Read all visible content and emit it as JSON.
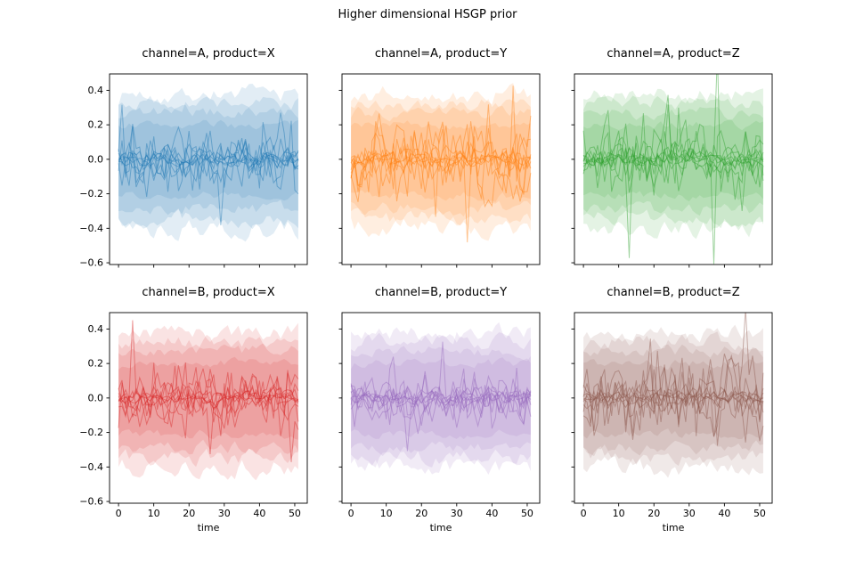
{
  "chart_data": {
    "type": "line",
    "suptitle": "Higher dimensional HSGP prior",
    "layout": {
      "rows": 2,
      "cols": 3,
      "grid": false,
      "legend": "none"
    },
    "x": {
      "label": "time",
      "ticks": [
        0,
        10,
        20,
        30,
        40,
        50
      ],
      "tick_labels": [
        "0",
        "10",
        "20",
        "30",
        "40",
        "50"
      ],
      "range": [
        -2.55,
        53.55
      ],
      "data_start": 0,
      "data_end": 51,
      "n_points": 52
    },
    "y": {
      "label": "",
      "ticks": [
        0.4,
        0.2,
        0.0,
        -0.2,
        -0.4,
        -0.6
      ],
      "tick_labels": [
        "0.4",
        "0.2",
        "0.0",
        "−0.2",
        "−0.4",
        "−0.6"
      ],
      "range": [
        -0.61,
        0.495
      ]
    },
    "style": {
      "n_draws": 10,
      "line_alpha": 0.45,
      "line_width": 1,
      "band_alpha": 0.13,
      "band_half_widths": [
        0.42,
        0.36,
        0.3,
        0.22
      ],
      "spine_color": "#000000",
      "background": "#ffffff"
    },
    "subplots": [
      {
        "title": "channel=A, product=X",
        "channel": "A",
        "product": "X",
        "color": "#1f77b4",
        "seed": 7
      },
      {
        "title": "channel=A, product=Y",
        "channel": "A",
        "product": "Y",
        "color": "#ff7f0e",
        "seed": 12
      },
      {
        "title": "channel=A, product=Z",
        "channel": "A",
        "product": "Z",
        "color": "#2ca02c",
        "seed": 21
      },
      {
        "title": "channel=B, product=X",
        "channel": "B",
        "product": "X",
        "color": "#d62728",
        "seed": 33
      },
      {
        "title": "channel=B, product=Y",
        "channel": "B",
        "product": "Y",
        "color": "#9467bd",
        "seed": 48
      },
      {
        "title": "channel=B, product=Z",
        "channel": "B",
        "product": "Z",
        "color": "#8c564b",
        "seed": 55
      }
    ]
  }
}
